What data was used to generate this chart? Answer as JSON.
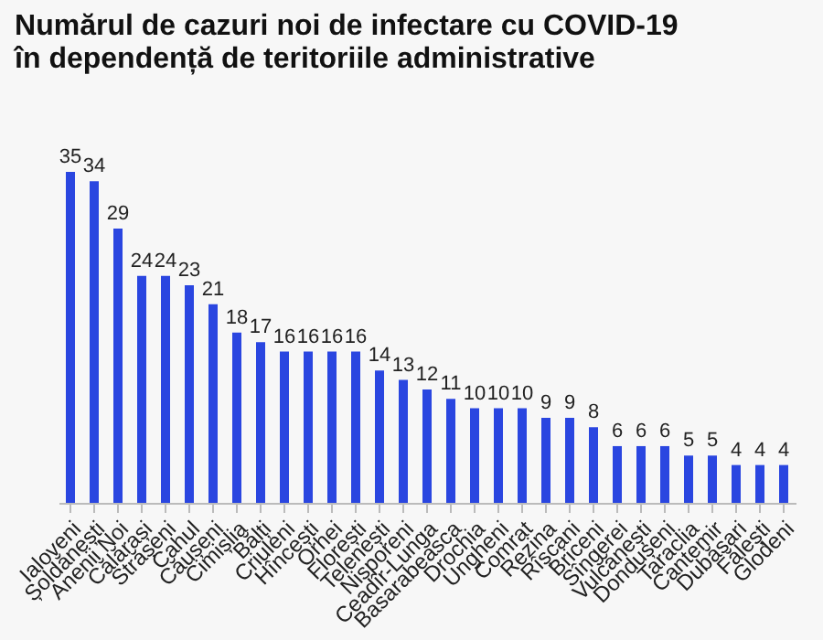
{
  "chart_data": {
    "type": "bar",
    "title": "Numărul de cazuri noi de infectare cu COVID-19\nîn dependență de teritoriile administrative",
    "categories": [
      "Ialoveni",
      "Șoldănești",
      "Anenii Noi",
      "Călărași",
      "Strășeni",
      "Cahul",
      "Căușeni",
      "Cimișlia",
      "Bălți",
      "Criuleni",
      "Hîncești",
      "Orhei",
      "Florești",
      "Telenești",
      "Nisporeni",
      "Ceadîr-Lunga",
      "Basarabeasca",
      "Drochia",
      "Ungheni",
      "Comrat",
      "Rezina",
      "Rîșcani",
      "Briceni",
      "Sîngerei",
      "Vulcănești",
      "Dondușeni",
      "Taraclia",
      "Cantemir",
      "Dubăsari",
      "Fălești",
      "Glodeni"
    ],
    "values": [
      35,
      34,
      29,
      24,
      24,
      23,
      21,
      18,
      17,
      16,
      16,
      16,
      16,
      14,
      13,
      12,
      11,
      10,
      10,
      10,
      9,
      9,
      8,
      6,
      6,
      6,
      5,
      5,
      4,
      4,
      4
    ],
    "color": "#2a46e0",
    "data_labels": true
  }
}
